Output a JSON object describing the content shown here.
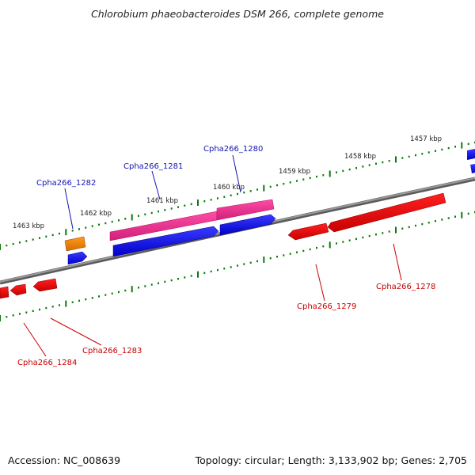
{
  "header": {
    "title": "Chlorobium phaeobacteroides DSM 266, complete genome"
  },
  "footer": {
    "accession": "Accession: NC_008639",
    "summary": "Topology: circular; Length: 3,133,902 bp; Genes: 2,705"
  },
  "scale_labels": [
    "1457 kbp",
    "1458 kbp",
    "1459 kbp",
    "1460 kbp",
    "1461 kbp",
    "1462 kbp",
    "1463 kbp"
  ],
  "genes": {
    "forward": [
      "Cpha266_1280",
      "Cpha266_1281",
      "Cpha266_1282"
    ],
    "reverse": [
      "Cpha266_1278",
      "Cpha266_1279",
      "Cpha266_1283",
      "Cpha266_1284"
    ]
  },
  "colors": {
    "backbone": "#808080",
    "tick": "#0a7a0a",
    "forward_label": "#1414b4",
    "reverse_label": "#c80000",
    "blue_gene": "#0000ee",
    "magenta_gene": "#ee3399",
    "orange_gene": "#f08000",
    "red_gene": "#ee0000"
  }
}
